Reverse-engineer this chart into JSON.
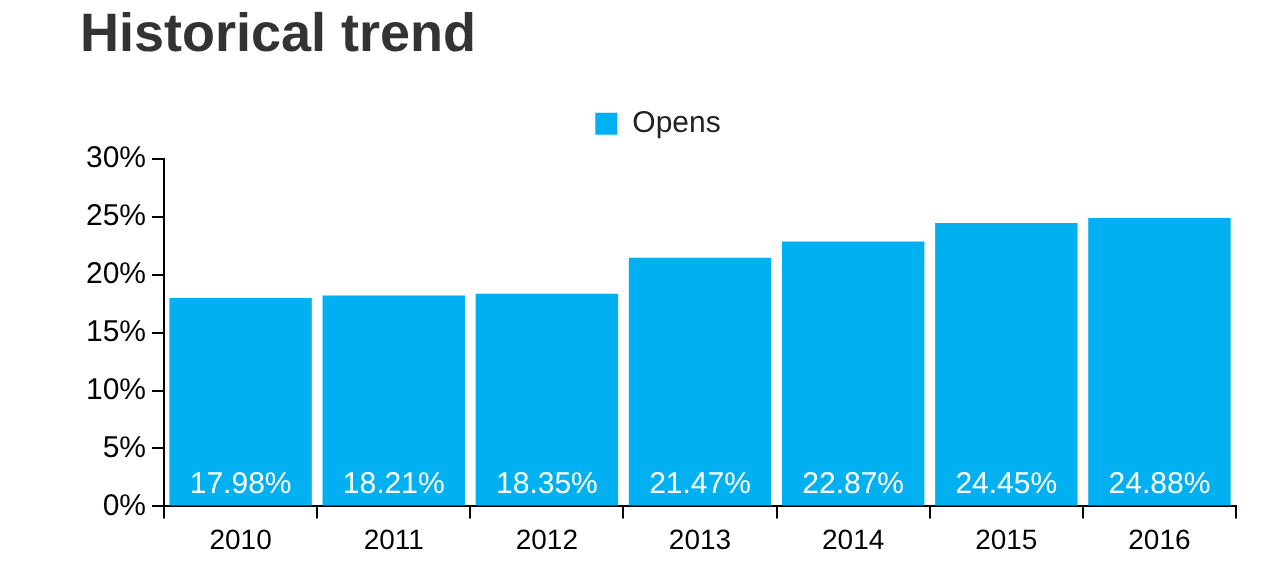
{
  "chart_data": {
    "type": "bar",
    "title": "Historical trend",
    "categories": [
      "2010",
      "2011",
      "2012",
      "2013",
      "2014",
      "2015",
      "2016"
    ],
    "series": [
      {
        "name": "Opens",
        "color": "#00b0f0",
        "values": [
          17.98,
          18.21,
          18.35,
          21.47,
          22.87,
          24.45,
          24.88
        ],
        "value_labels": [
          "17.98%",
          "18.21%",
          "18.35%",
          "21.47%",
          "22.87%",
          "24.45%",
          "24.88%"
        ]
      }
    ],
    "ylim": [
      0,
      30
    ],
    "yticks": [
      {
        "value": 0,
        "label": "0%"
      },
      {
        "value": 5,
        "label": "5%"
      },
      {
        "value": 10,
        "label": "10%"
      },
      {
        "value": 15,
        "label": "15%"
      },
      {
        "value": 20,
        "label": "20%"
      },
      {
        "value": 25,
        "label": "25%"
      },
      {
        "value": 30,
        "label": "30%"
      }
    ],
    "grid": false,
    "legend": "top"
  }
}
